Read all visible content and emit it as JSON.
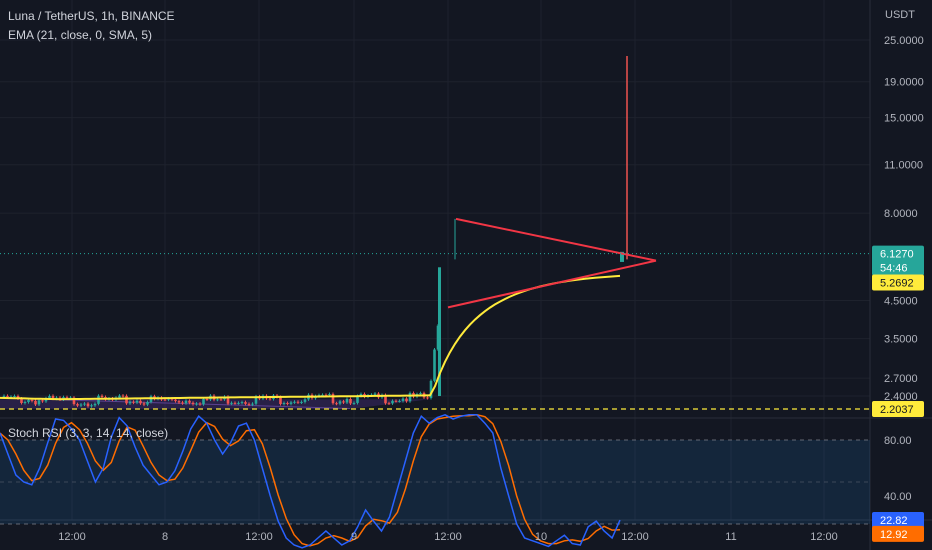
{
  "header": {
    "title": "Luna / TetherUS, 1h, BINANCE",
    "ema_label": "EMA (21, close, 0, SMA, 5)",
    "currency": "USDT"
  },
  "stoch": {
    "label": "Stoch RSI (3, 3, 14, 14, close)"
  },
  "price_tags": {
    "last": "6.1270",
    "countdown": "54:46",
    "ema": "5.2692",
    "level": "2.2037",
    "k": "22.82",
    "d": "12.92"
  },
  "colors": {
    "background": "#131722",
    "up": "#26a69a",
    "down": "#ef5350",
    "ema": "#ffeb3b",
    "triangle": "#f23645",
    "k_line": "#2962ff",
    "d_line": "#ff6d00",
    "level": "#ffeb3b"
  },
  "chart_data": [
    {
      "type": "candlestick",
      "title": "Luna / TetherUS, 1h, BINANCE",
      "y_axis_label": "USDT",
      "y_scale": "log",
      "y_ticks": [
        "25.0000",
        "19.0000",
        "15.0000",
        "11.0000",
        "8.0000",
        "4.5000",
        "3.5000",
        "2.7000",
        "2.4000"
      ],
      "x_ticks": [
        "12:00",
        "8",
        "12:00",
        "9",
        "12:00",
        "10",
        "12:00",
        "11",
        "12:00"
      ],
      "last_price": 6.127,
      "ema_value": 5.2692,
      "level": 2.2037,
      "spike_high": 22.5,
      "pennant_start_high": 7.7,
      "pennant_start_low": 4.3,
      "series": [
        {
          "name": "EMA (21, close, 0, SMA, 5)",
          "note": "yellow moving average"
        }
      ]
    },
    {
      "type": "line",
      "title": "Stoch RSI (3, 3, 14, 14, close)",
      "y_ticks": [
        "80.00",
        "40.00"
      ],
      "ylim": [
        0,
        100
      ],
      "bands": [
        80,
        50,
        20
      ],
      "k_last": 22.82,
      "d_last": 12.92
    }
  ]
}
